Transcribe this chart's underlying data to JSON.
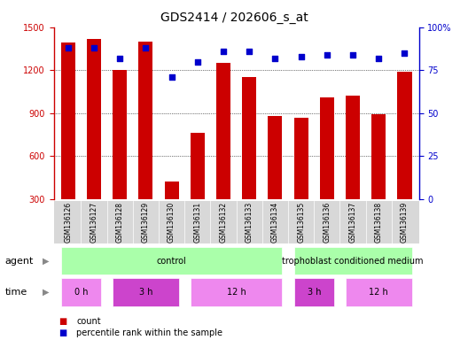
{
  "title": "GDS2414 / 202606_s_at",
  "samples": [
    "GSM136126",
    "GSM136127",
    "GSM136128",
    "GSM136129",
    "GSM136130",
    "GSM136131",
    "GSM136132",
    "GSM136133",
    "GSM136134",
    "GSM136135",
    "GSM136136",
    "GSM136137",
    "GSM136138",
    "GSM136139"
  ],
  "counts": [
    1390,
    1420,
    1200,
    1400,
    420,
    760,
    1250,
    1150,
    880,
    870,
    1010,
    1020,
    890,
    1190
  ],
  "percentile_ranks": [
    88,
    88,
    82,
    88,
    71,
    80,
    86,
    86,
    82,
    83,
    84,
    84,
    82,
    85
  ],
  "bar_color": "#cc0000",
  "dot_color": "#0000cc",
  "ylim_left": [
    300,
    1500
  ],
  "ylim_right": [
    0,
    100
  ],
  "yticks_left": [
    300,
    600,
    900,
    1200,
    1500
  ],
  "yticks_right": [
    0,
    25,
    50,
    75,
    100
  ],
  "yticklabels_right": [
    "0",
    "25",
    "50",
    "75",
    "100%"
  ],
  "grid_vals": [
    600,
    900,
    1200
  ],
  "agent_groups": [
    {
      "label": "control",
      "start": 0,
      "end": 9,
      "color": "#aaffaa"
    },
    {
      "label": "trophoblast conditioned medium",
      "start": 9,
      "end": 14,
      "color": "#aaffaa"
    }
  ],
  "time_groups": [
    {
      "label": "0 h",
      "start": 0,
      "end": 2,
      "color": "#ee88ee"
    },
    {
      "label": "3 h",
      "start": 2,
      "end": 5,
      "color": "#cc44cc"
    },
    {
      "label": "12 h",
      "start": 5,
      "end": 9,
      "color": "#ee88ee"
    },
    {
      "label": "3 h",
      "start": 9,
      "end": 11,
      "color": "#cc44cc"
    },
    {
      "label": "12 h",
      "start": 11,
      "end": 14,
      "color": "#ee88ee"
    }
  ],
  "legend_count_label": "count",
  "legend_pct_label": "percentile rank within the sample",
  "bar_width": 0.55,
  "title_fontsize": 10,
  "tick_fontsize": 7,
  "label_fontsize": 8,
  "row_fontsize": 7,
  "xlim": [
    -0.55,
    13.55
  ]
}
